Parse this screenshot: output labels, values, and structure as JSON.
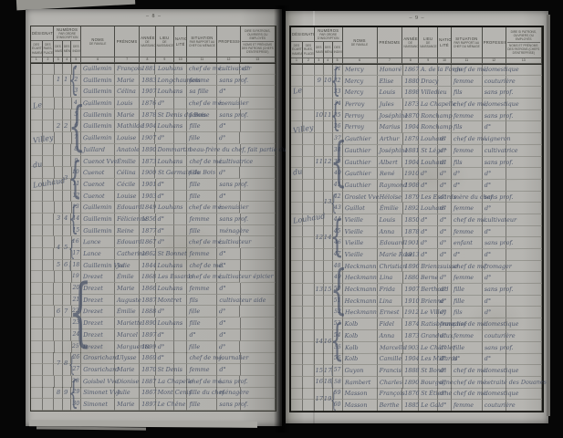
{
  "colors": {
    "ink": "#3f4960",
    "paper": "#b3b2ae",
    "print": "#3c3c37"
  },
  "header": {
    "designation": {
      "title": "Désignation",
      "subs": [
        "des écarts, hameaux",
        "des rues, places"
      ],
      "nums": [
        "1",
        "2"
      ]
    },
    "numeros": {
      "title": "Numéros",
      "subtitle": "par ordre d'inscription",
      "subs": [
        "des maisons",
        "des ménages",
        "des individus"
      ],
      "nums": [
        "3",
        "4",
        "5"
      ]
    },
    "simple_columns": [
      {
        "label": "Noms",
        "sub": "de famille",
        "num": "6"
      },
      {
        "label": "Prénoms",
        "sub": "",
        "num": "7"
      },
      {
        "label": "Année",
        "sub": "de naissance",
        "num": "8"
      },
      {
        "label": "Lieu",
        "sub": "de naissance",
        "num": "9"
      },
      {
        "label": "Nationa- lité",
        "sub": "",
        "num": "10"
      },
      {
        "label": "Situation",
        "sub": "par rapport au chef du ménage",
        "num": "11"
      },
      {
        "label": "Profession",
        "sub": "",
        "num": "12"
      }
    ],
    "last_column": {
      "top": "Dire si patrons, ouvriers ou employés",
      "bottom": "Noms et prénoms des patrons (chefs d'entreprise)",
      "num": "13"
    }
  },
  "pages": {
    "left": {
      "page_number": "– 8 –",
      "margin_words": [
        {
          "text": "Le",
          "row": 4.3
        },
        {
          "text": "Villey",
          "row": 7.2
        },
        {
          "text": "du",
          "row": 9.4
        },
        {
          "text": "Louhaud",
          "row": 11
        }
      ],
      "groups": [
        {
          "maison": "1",
          "menage": "1",
          "start": 1,
          "size": 3
        },
        {
          "maison": "2",
          "menage": "2",
          "start": 4,
          "size": 5
        },
        {
          "maison": "",
          "menage": "3",
          "start": 9,
          "size": 4
        },
        {
          "maison": "3",
          "menage": "4",
          "start": 13,
          "size": 3
        },
        {
          "maison": "4",
          "menage": "5",
          "start": 16,
          "size": 2
        },
        {
          "maison": "5",
          "menage": "6",
          "start": 18,
          "size": 1
        },
        {
          "maison": "6",
          "menage": "7",
          "start": 19,
          "size": 7
        },
        {
          "maison": "7",
          "menage": "8",
          "start": 26,
          "size": 2
        },
        {
          "maison": "8",
          "menage": "9",
          "start": 28,
          "size": 3
        }
      ],
      "rows": [
        [
          "1",
          "Guillemin",
          "François",
          "1881",
          "Louhans",
          "",
          "chef de mé.",
          "cultivateur",
          "d°"
        ],
        [
          "2",
          "Guillemin",
          "Marie",
          "1883",
          "Longchaumois",
          "",
          "femme",
          "sans prof.",
          ""
        ],
        [
          "3",
          "Guillemin",
          "Célina",
          "1907",
          "Louhans",
          "",
          "sa fille",
          "d°",
          ""
        ],
        [
          "4",
          "Guillemin",
          "Louis",
          "1876",
          "d°",
          "",
          "chef de mé.",
          "menuisier",
          ""
        ],
        [
          "5",
          "Guillemin",
          "Marie",
          "1878",
          "St Denis du Bois",
          "",
          "femme",
          "sans prof.",
          ""
        ],
        [
          "6",
          "Guillemin",
          "Mathilde",
          "1904",
          "Louhans",
          "",
          "fille",
          "d°",
          ""
        ],
        [
          "7",
          "Guillemin",
          "Louise",
          "1907",
          "d°",
          "",
          "fille",
          "d°",
          ""
        ],
        [
          "8",
          "Juillard",
          "Anatole",
          "1890",
          "Dommartin",
          "",
          "beau-frère du chef, fait partie du mé.",
          "",
          ""
        ],
        [
          "9",
          "Cuenot Vve",
          "Émilie",
          "1873",
          "Louhans",
          "",
          "chef de mé.",
          "cultivatrice",
          ""
        ],
        [
          "10",
          "Cuenot",
          "Célina",
          "1900",
          "St Germain du Bois",
          "",
          "fille",
          "d°",
          ""
        ],
        [
          "11",
          "Cuenot",
          "Cécile",
          "1901",
          "d°",
          "",
          "fille",
          "sans prof.",
          ""
        ],
        [
          "12",
          "Cuenot",
          "Louise",
          "1903",
          "d°",
          "",
          "fille",
          "d°",
          ""
        ],
        [
          "13",
          "Guillemin",
          "Edouard",
          "1849",
          "Louhans",
          "",
          "chef de mé.",
          "menuisier",
          ""
        ],
        [
          "14",
          "Guillemin",
          "Félicienne",
          "1856",
          "d°",
          "",
          "femme",
          "sans prof.",
          ""
        ],
        [
          "15",
          "Guillemin",
          "Reine",
          "1877",
          "d°",
          "",
          "fille",
          "ménagère",
          ""
        ],
        [
          "16",
          "Lance",
          "Edouard",
          "1867",
          "d°",
          "",
          "chef de mé.",
          "cultivateur",
          ""
        ],
        [
          "17",
          "Lance",
          "Catherine",
          "1862",
          "St Bonnet",
          "",
          "femme",
          "d°",
          ""
        ],
        [
          "18",
          "Guillemin Vve",
          "Julie",
          "1844",
          "Louhans",
          "",
          "chef de mé.",
          "d°",
          ""
        ],
        [
          "19",
          "Drezet",
          "Émile",
          "1868",
          "Les Essards",
          "",
          "chef de mé.",
          "cultivateur épicier",
          ""
        ],
        [
          "20",
          "Drezet",
          "Marie",
          "1866",
          "Louhans",
          "",
          "femme",
          "d°",
          ""
        ],
        [
          "21",
          "Drezet",
          "Auguste",
          "1887",
          "Montret",
          "",
          "fils",
          "cultivateur aide",
          ""
        ],
        [
          "22",
          "Drezet",
          "Émilie",
          "1888",
          "d°",
          "",
          "fille",
          "d°",
          ""
        ],
        [
          "23",
          "Drezet",
          "Mariette",
          "1890",
          "Louhans",
          "",
          "fille",
          "d°",
          ""
        ],
        [
          "24",
          "Drezet",
          "Marcel",
          "1897",
          "d°",
          "",
          "d°",
          "d°",
          ""
        ],
        [
          "25",
          "Drezet",
          "Marguerite",
          "1899",
          "d°",
          "",
          "fille",
          "d°",
          ""
        ],
        [
          "26",
          "Grosrichard",
          "Ulysse",
          "1869",
          "d°",
          "",
          "chef de mé.",
          "journalier",
          ""
        ],
        [
          "27",
          "Grosrichard",
          "Marie",
          "1870",
          "St Denis",
          "",
          "femme",
          "d°",
          ""
        ],
        [
          "28",
          "Goisbel Vve",
          "Dionise",
          "1887",
          "La Chapelle",
          "",
          "chef de mé.",
          "sans prof.",
          ""
        ],
        [
          "29",
          "Simonet Vve",
          "Julie",
          "1867",
          "Mont Cenis",
          "",
          "fille du chef",
          "ménagère",
          ""
        ],
        [
          "30",
          "Simonet",
          "Marie",
          "1897",
          "Le Chêne",
          "",
          "fille",
          "sans prof.",
          ""
        ]
      ]
    },
    "right": {
      "page_number": "– 9 –",
      "margin_words": [
        {
          "text": "Le",
          "row": 3
        },
        {
          "text": "Villey",
          "row": 6.3
        },
        {
          "text": "du",
          "row": 10
        },
        {
          "text": "Louhaud",
          "row": 14
        }
      ],
      "groups": [
        {
          "maison": "9",
          "menage": "10",
          "start": 1,
          "size": 3
        },
        {
          "maison": "10",
          "menage": "11",
          "start": 4,
          "size": 3
        },
        {
          "maison": "11",
          "menage": "12",
          "start": 7,
          "size": 5
        },
        {
          "maison": "",
          "menage": "13",
          "start": 12,
          "size": 2
        },
        {
          "maison": "12",
          "menage": "14",
          "start": 14,
          "size": 4
        },
        {
          "maison": "13",
          "menage": "15",
          "start": 18,
          "size": 5
        },
        {
          "maison": "14",
          "menage": "16",
          "start": 23,
          "size": 4
        },
        {
          "maison": "15",
          "menage": "17",
          "start": 27,
          "size": 1
        },
        {
          "maison": "16",
          "menage": "18",
          "start": 28,
          "size": 1
        },
        {
          "maison": "17",
          "menage": "19",
          "start": 29,
          "size": 2
        }
      ],
      "rows": [
        [
          "31",
          "Mercy",
          "Honoré",
          "1867",
          "A. de la Forge",
          "",
          "chef de mé.",
          "domestique",
          ""
        ],
        [
          "32",
          "Mercy",
          "Elise",
          "1880",
          "Dracy",
          "",
          "femme",
          "couturière",
          ""
        ],
        [
          "33",
          "Mercy",
          "Louis",
          "1898",
          "Villedieu",
          "",
          "fils",
          "sans prof.",
          ""
        ],
        [
          "34",
          "Perroy",
          "Jules",
          "1873",
          "La Chapelle",
          "",
          "chef de mé.",
          "domestique",
          ""
        ],
        [
          "35",
          "Perroy",
          "Joséphine",
          "1870",
          "Ronchamp",
          "",
          "femme",
          "sans prof.",
          ""
        ],
        [
          "36",
          "Perroy",
          "Marius",
          "1904",
          "Ronchamp",
          "",
          "fils",
          "d°",
          ""
        ],
        [
          "37",
          "Gauthier",
          "Arthur",
          "1879",
          "Louhans",
          "d°",
          "chef de mé.",
          "vigneron",
          ""
        ],
        [
          "38",
          "Gauthier",
          "Joséphine",
          "1881",
          "St Léger",
          "d°",
          "femme",
          "cultivatrice",
          ""
        ],
        [
          "39",
          "Gauthier",
          "Albert",
          "1904",
          "Louhans",
          "d°",
          "fils",
          "sans prof.",
          ""
        ],
        [
          "40",
          "Gauthier",
          "René",
          "1910",
          "d°",
          "d°",
          "d°",
          "d°",
          ""
        ],
        [
          "41",
          "Gauthier",
          "Raymond",
          "1908",
          "d°",
          "d°",
          "d°",
          "d°",
          ""
        ],
        [
          "42",
          "Groslet Vve",
          "Héloïse",
          "1879",
          "Les Essards",
          "d°",
          "mère du chef",
          "sans prof.",
          ""
        ],
        [
          "43",
          "Guillot",
          "Émilie",
          "1892",
          "Louhans",
          "d°",
          "femme",
          "d°",
          ""
        ],
        [
          "44",
          "Vieille",
          "Louis",
          "1850",
          "d°",
          "d°",
          "chef de mé.",
          "cultivateur",
          ""
        ],
        [
          "45",
          "Vieille",
          "Anna",
          "1878",
          "d°",
          "d°",
          "femme",
          "d°",
          ""
        ],
        [
          "46",
          "Vieille",
          "Edouard",
          "1901",
          "d°",
          "d°",
          "enfant",
          "sans prof.",
          ""
        ],
        [
          "47",
          "Vieille",
          "Marie Rose",
          "1913",
          "d°",
          "d°",
          "d°",
          "d°",
          ""
        ],
        [
          "48",
          "Heckmann",
          "Christian",
          "1896",
          "Brienz",
          "suisse",
          "chef de mé.",
          "fromager",
          ""
        ],
        [
          "49",
          "Heckmann",
          "Lina",
          "1880",
          "Berne",
          "d°",
          "femme",
          "d°",
          ""
        ],
        [
          "50",
          "Heckmann",
          "Frida",
          "1907",
          "Berthoud",
          "d°",
          "fille",
          "sans prof.",
          ""
        ],
        [
          "51",
          "Heckmann",
          "Lina",
          "1910",
          "Brienne",
          "d°",
          "fille",
          "d°",
          ""
        ],
        [
          "52",
          "Heckmann",
          "Ernest",
          "1912",
          "Le Villey",
          "d°",
          "fils",
          "d°",
          ""
        ],
        [
          "53",
          "Kolb",
          "Fidel",
          "1874",
          "Ratisbonne",
          "française",
          "chef de mé.",
          "domestique",
          ""
        ],
        [
          "54",
          "Kolb",
          "Anna",
          "1873",
          "Grandvaux",
          "d°",
          "femme",
          "couturière",
          ""
        ],
        [
          "55",
          "Kolb",
          "Marcelle",
          "1903",
          "Le Châtelet",
          "d°",
          "fille",
          "sans prof.",
          ""
        ],
        [
          "56",
          "Kolb",
          "Camille",
          "1904",
          "Les Millards",
          "d°",
          "d°",
          "d°",
          ""
        ],
        [
          "57",
          "Guyon",
          "Francis",
          "1888",
          "St Bonin",
          "d°",
          "chef de mé.",
          "domestique",
          ""
        ],
        [
          "58",
          "Rambert",
          "Charles",
          "1890",
          "Bourgogne",
          "d°",
          "chef de mé.",
          "retraité des Douanes",
          ""
        ],
        [
          "59",
          "Masson",
          "François",
          "1876",
          "St Étienne",
          "d°",
          "chef de mé.",
          "domestique",
          ""
        ],
        [
          "60",
          "Masson",
          "Berthe",
          "1885",
          "Le Gal",
          "d°",
          "femme",
          "couturière",
          ""
        ]
      ]
    }
  }
}
